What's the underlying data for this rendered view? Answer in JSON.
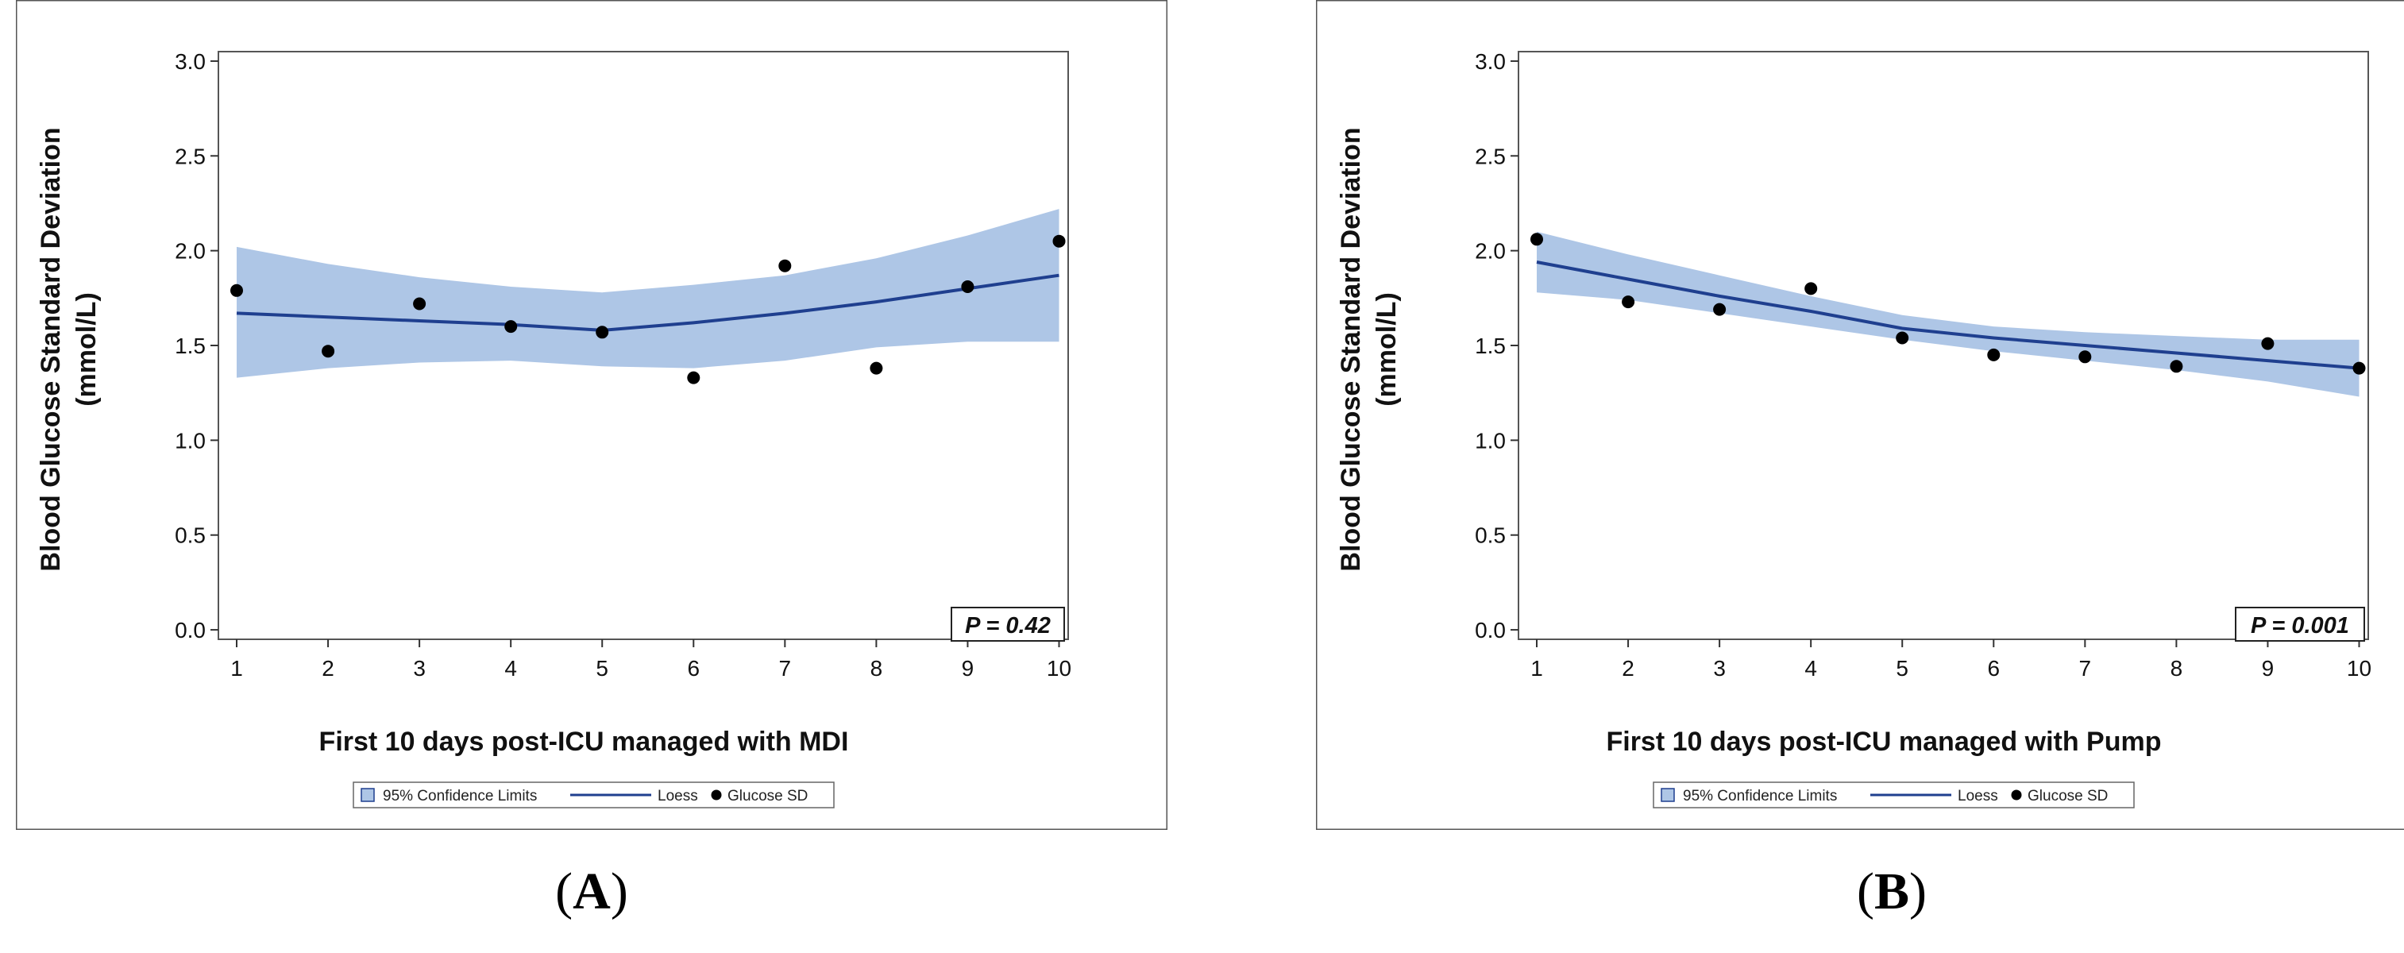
{
  "chart_data": [
    {
      "type": "scatter",
      "panel_label": "A",
      "xlabel": "First 10 days post-ICU managed with MDI",
      "ylabel": "Blood Glucose Standard Deviation",
      "ylabel_unit": "(mmol/L)",
      "x": [
        1,
        2,
        3,
        4,
        5,
        6,
        7,
        8,
        9,
        10
      ],
      "xlim": [
        0.8,
        10.1
      ],
      "ylim": [
        -0.05,
        3.05
      ],
      "yticks": [
        "0.0",
        "0.5",
        "1.0",
        "1.5",
        "2.0",
        "2.5",
        "3.0"
      ],
      "xticks": [
        "1",
        "2",
        "3",
        "4",
        "5",
        "6",
        "7",
        "8",
        "9",
        "10"
      ],
      "series": [
        {
          "name": "Glucose SD",
          "kind": "points",
          "values": [
            1.79,
            1.47,
            1.72,
            1.6,
            1.57,
            1.33,
            1.92,
            1.38,
            1.81,
            2.05
          ]
        },
        {
          "name": "Loess",
          "kind": "line",
          "values": [
            1.67,
            1.65,
            1.63,
            1.61,
            1.58,
            1.62,
            1.67,
            1.73,
            1.8,
            1.87
          ]
        },
        {
          "name": "95% Confidence Limits",
          "kind": "band",
          "lower": [
            1.33,
            1.38,
            1.41,
            1.42,
            1.39,
            1.38,
            1.42,
            1.49,
            1.52,
            1.52
          ],
          "upper": [
            2.02,
            1.93,
            1.86,
            1.81,
            1.78,
            1.82,
            1.87,
            1.96,
            2.08,
            2.22
          ]
        }
      ],
      "legend": [
        "95% Confidence Limits",
        "Loess",
        "Glucose SD"
      ],
      "annotation": "P = 0.42"
    },
    {
      "type": "scatter",
      "panel_label": "B",
      "xlabel": "First 10 days post-ICU managed with Pump",
      "ylabel": "Blood Glucose Standard Deviation",
      "ylabel_unit": "(mmol/L)",
      "x": [
        1,
        2,
        3,
        4,
        5,
        6,
        7,
        8,
        9,
        10
      ],
      "xlim": [
        0.8,
        10.1
      ],
      "ylim": [
        -0.05,
        3.05
      ],
      "yticks": [
        "0.0",
        "0.5",
        "1.0",
        "1.5",
        "2.0",
        "2.5",
        "3.0"
      ],
      "xticks": [
        "1",
        "2",
        "3",
        "4",
        "5",
        "6",
        "7",
        "8",
        "9",
        "10"
      ],
      "series": [
        {
          "name": "Glucose SD",
          "kind": "points",
          "values": [
            2.06,
            1.73,
            1.69,
            1.8,
            1.54,
            1.45,
            1.44,
            1.39,
            1.51,
            1.38
          ]
        },
        {
          "name": "Loess",
          "kind": "line",
          "values": [
            1.94,
            1.85,
            1.76,
            1.68,
            1.59,
            1.54,
            1.5,
            1.46,
            1.42,
            1.38
          ]
        },
        {
          "name": "95% Confidence Limits",
          "kind": "band",
          "lower": [
            1.78,
            1.74,
            1.67,
            1.6,
            1.53,
            1.47,
            1.42,
            1.37,
            1.31,
            1.23
          ]
        },
        {
          "name": "95% Confidence Limits upper",
          "kind": "band_upper",
          "upper": [
            2.1,
            1.98,
            1.87,
            1.76,
            1.66,
            1.6,
            1.57,
            1.55,
            1.53,
            1.53
          ]
        }
      ],
      "legend": [
        "95% Confidence Limits",
        "Loess",
        "Glucose SD"
      ],
      "annotation": "P = 0.001"
    }
  ],
  "colors": {
    "band": "#aec6e6",
    "line": "#1f3f8f",
    "point": "#000000",
    "frame": "#555555"
  }
}
